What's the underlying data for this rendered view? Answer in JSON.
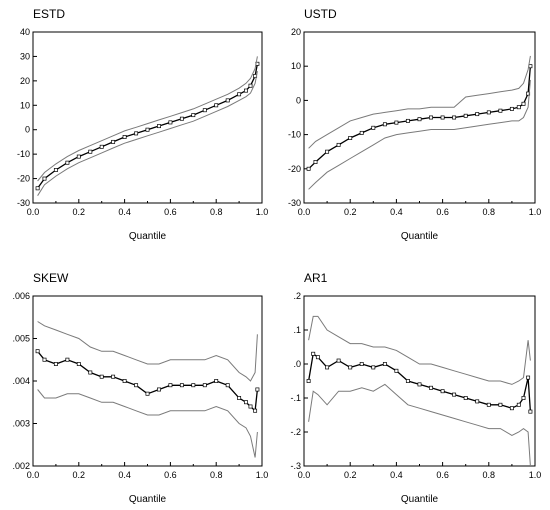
{
  "chart_data": [
    {
      "type": "line",
      "title": "ESTD",
      "xlabel": "Quantile",
      "ylabel": "",
      "xlim": [
        0.0,
        1.0
      ],
      "ylim": [
        -30,
        40
      ],
      "xticks": [
        "0.0",
        "0.2",
        "0.4",
        "0.6",
        "0.8",
        "1.0"
      ],
      "yticks": [
        "-30",
        "-20",
        "-10",
        "0",
        "10",
        "20",
        "30",
        "40"
      ],
      "x": [
        0.02,
        0.05,
        0.1,
        0.15,
        0.2,
        0.25,
        0.3,
        0.35,
        0.4,
        0.45,
        0.5,
        0.55,
        0.6,
        0.65,
        0.7,
        0.75,
        0.8,
        0.85,
        0.9,
        0.93,
        0.95,
        0.97,
        0.98
      ],
      "series": [
        {
          "role": "estimate",
          "values": [
            -24,
            -20,
            -16.5,
            -13.5,
            -11,
            -9,
            -7,
            -5,
            -3,
            -1.5,
            0,
            1.5,
            3,
            4.5,
            6,
            8,
            10,
            12,
            14.5,
            16,
            18,
            22,
            27
          ]
        },
        {
          "role": "upper",
          "values": [
            -21,
            -17.5,
            -14,
            -11,
            -8.5,
            -6.5,
            -4.5,
            -2.5,
            -0.5,
            1,
            2.5,
            4,
            5.5,
            7,
            8.5,
            10.5,
            12.5,
            14.5,
            17,
            19,
            21,
            25,
            30
          ]
        },
        {
          "role": "lower",
          "values": [
            -27,
            -22.5,
            -19,
            -16,
            -13.5,
            -11.5,
            -9.5,
            -7.5,
            -5.5,
            -4,
            -2.5,
            -1,
            0.5,
            2,
            3.5,
            5.5,
            7.5,
            9.5,
            12,
            13.5,
            15,
            19,
            24
          ]
        }
      ]
    },
    {
      "type": "line",
      "title": "USTD",
      "xlabel": "Quantile",
      "ylabel": "",
      "xlim": [
        0.0,
        1.0
      ],
      "ylim": [
        -30,
        20
      ],
      "xticks": [
        "0.0",
        "0.2",
        "0.4",
        "0.6",
        "0.8",
        "1.0"
      ],
      "yticks": [
        "-30",
        "-20",
        "-10",
        "0",
        "10",
        "20"
      ],
      "x": [
        0.02,
        0.05,
        0.1,
        0.15,
        0.2,
        0.25,
        0.3,
        0.35,
        0.4,
        0.45,
        0.5,
        0.55,
        0.6,
        0.65,
        0.7,
        0.75,
        0.8,
        0.85,
        0.9,
        0.93,
        0.95,
        0.97,
        0.98
      ],
      "series": [
        {
          "role": "estimate",
          "values": [
            -20,
            -18,
            -15,
            -13,
            -11,
            -9.5,
            -8,
            -7,
            -6.5,
            -6,
            -5.5,
            -5,
            -5,
            -5,
            -4.5,
            -4,
            -3.5,
            -3,
            -2.5,
            -2,
            -1,
            2,
            10
          ]
        },
        {
          "role": "upper",
          "values": [
            -14,
            -12,
            -10,
            -8,
            -6,
            -5,
            -4,
            -3.5,
            -3,
            -2.5,
            -2.5,
            -2,
            -2,
            -2,
            1,
            1.5,
            2,
            2.5,
            3,
            3.5,
            5,
            9,
            13
          ]
        },
        {
          "role": "lower",
          "values": [
            -26,
            -24,
            -21,
            -19,
            -17,
            -15,
            -13,
            -11,
            -10,
            -9.5,
            -9,
            -8.5,
            -8.5,
            -8.5,
            -8,
            -7.5,
            -7,
            -6.5,
            -6,
            -6,
            -5,
            -2,
            6
          ]
        }
      ]
    },
    {
      "type": "line",
      "title": "SKEW",
      "xlabel": "Quantile",
      "ylabel": "",
      "xlim": [
        0.0,
        1.0
      ],
      "ylim": [
        0.002,
        0.006
      ],
      "xticks": [
        "0.0",
        "0.2",
        "0.4",
        "0.6",
        "0.8",
        "1.0"
      ],
      "yticks": [
        ".002",
        ".003",
        ".004",
        ".005",
        ".006"
      ],
      "x": [
        0.02,
        0.05,
        0.1,
        0.15,
        0.2,
        0.25,
        0.3,
        0.35,
        0.4,
        0.45,
        0.5,
        0.55,
        0.6,
        0.65,
        0.7,
        0.75,
        0.8,
        0.85,
        0.9,
        0.93,
        0.95,
        0.97,
        0.98
      ],
      "series": [
        {
          "role": "estimate",
          "values": [
            0.0047,
            0.0045,
            0.0044,
            0.0045,
            0.0044,
            0.0042,
            0.0041,
            0.0041,
            0.004,
            0.0039,
            0.0037,
            0.0038,
            0.0039,
            0.0039,
            0.0039,
            0.0039,
            0.004,
            0.0039,
            0.0036,
            0.0035,
            0.0034,
            0.0033,
            0.0038
          ]
        },
        {
          "role": "upper",
          "values": [
            0.0054,
            0.0053,
            0.0052,
            0.0051,
            0.005,
            0.0048,
            0.0047,
            0.0047,
            0.0046,
            0.0045,
            0.0044,
            0.0044,
            0.0045,
            0.0045,
            0.0045,
            0.0045,
            0.0046,
            0.0045,
            0.0042,
            0.0041,
            0.004,
            0.0042,
            0.0051
          ]
        },
        {
          "role": "lower",
          "values": [
            0.0038,
            0.0036,
            0.0036,
            0.0037,
            0.0037,
            0.0036,
            0.0035,
            0.0035,
            0.0034,
            0.0033,
            0.0032,
            0.0032,
            0.0033,
            0.0033,
            0.0033,
            0.0033,
            0.0034,
            0.0033,
            0.003,
            0.0029,
            0.0027,
            0.0022,
            0.0028
          ]
        }
      ]
    },
    {
      "type": "line",
      "title": "AR1",
      "xlabel": "Quantile",
      "ylabel": "",
      "xlim": [
        0.0,
        1.0
      ],
      "ylim": [
        -0.3,
        0.2
      ],
      "xticks": [
        "0.0",
        "0.2",
        "0.4",
        "0.6",
        "0.8",
        "1.0"
      ],
      "yticks": [
        "-.3",
        "-.2",
        "-.1",
        ".0",
        ".1",
        ".2"
      ],
      "x": [
        0.02,
        0.04,
        0.06,
        0.1,
        0.15,
        0.2,
        0.25,
        0.3,
        0.35,
        0.4,
        0.45,
        0.5,
        0.55,
        0.6,
        0.65,
        0.7,
        0.75,
        0.8,
        0.85,
        0.9,
        0.93,
        0.95,
        0.97,
        0.98
      ],
      "series": [
        {
          "role": "estimate",
          "values": [
            -0.05,
            0.03,
            0.02,
            -0.01,
            0.01,
            -0.01,
            0.0,
            -0.01,
            0.0,
            -0.02,
            -0.05,
            -0.06,
            -0.07,
            -0.08,
            -0.09,
            -0.1,
            -0.11,
            -0.12,
            -0.12,
            -0.13,
            -0.12,
            -0.1,
            -0.04,
            -0.14
          ]
        },
        {
          "role": "upper",
          "values": [
            0.07,
            0.14,
            0.14,
            0.1,
            0.08,
            0.06,
            0.06,
            0.05,
            0.05,
            0.04,
            0.02,
            0.0,
            0.0,
            -0.01,
            -0.02,
            -0.03,
            -0.04,
            -0.05,
            -0.05,
            -0.06,
            -0.05,
            -0.04,
            0.07,
            0.01
          ]
        },
        {
          "role": "lower",
          "values": [
            -0.17,
            -0.08,
            -0.09,
            -0.12,
            -0.08,
            -0.08,
            -0.07,
            -0.08,
            -0.06,
            -0.09,
            -0.12,
            -0.13,
            -0.14,
            -0.15,
            -0.16,
            -0.17,
            -0.18,
            -0.19,
            -0.19,
            -0.21,
            -0.2,
            -0.19,
            -0.2,
            -0.3
          ]
        }
      ]
    }
  ]
}
